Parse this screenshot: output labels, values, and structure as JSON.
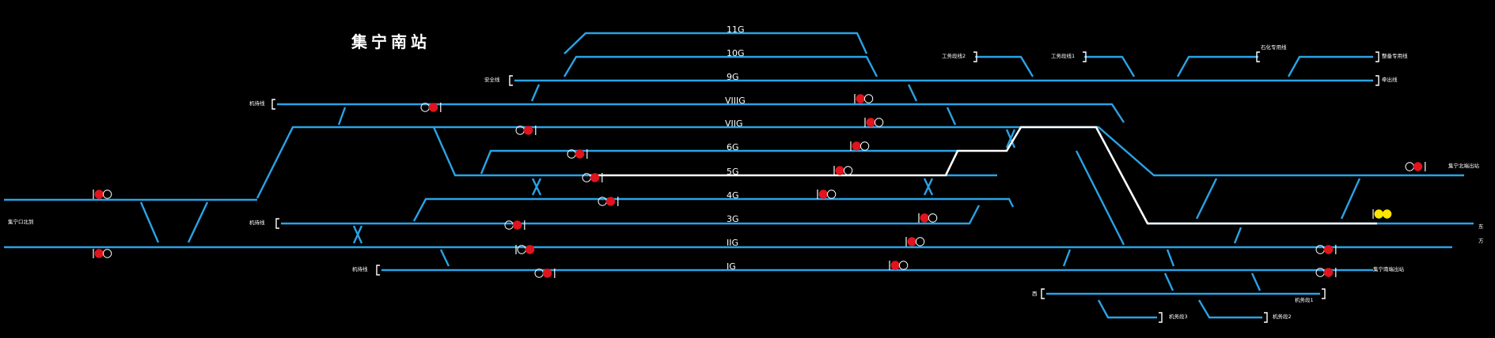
{
  "station_title": "集宁南站",
  "colors": {
    "background": "#000000",
    "track": "#2aa3e6",
    "route_locked": "#ffffff",
    "signal_red": "#e0141c",
    "signal_yellow": "#ffe600",
    "signal_off": "#ffffff"
  },
  "tracks": [
    "11G",
    "10G",
    "9G",
    "VIIIG",
    "VIIG",
    "6G",
    "5G",
    "4G",
    "3G",
    "IIG",
    "IG"
  ],
  "side_labels": {
    "safety_line": "安全线",
    "wuke_left_top": "机待线",
    "jining_north_depot": "集宁口北到",
    "wuke_left_bottom": "机待线",
    "wuke_ig": "机待线",
    "gongwu_2": "工务段线2",
    "gongwu_1": "工务段线1",
    "shihua_line": "石化专用线",
    "terminal_line": "整备专用线",
    "siding": "牵出线",
    "jining_north_right": "集宁北端出站",
    "east_a": "东",
    "east_b": "方",
    "jining_south_right": "集宁南端出站",
    "bottom_west": "西",
    "depot_1": "机务段1",
    "depot_3": "机务段3",
    "depot_2": "机务段2"
  }
}
